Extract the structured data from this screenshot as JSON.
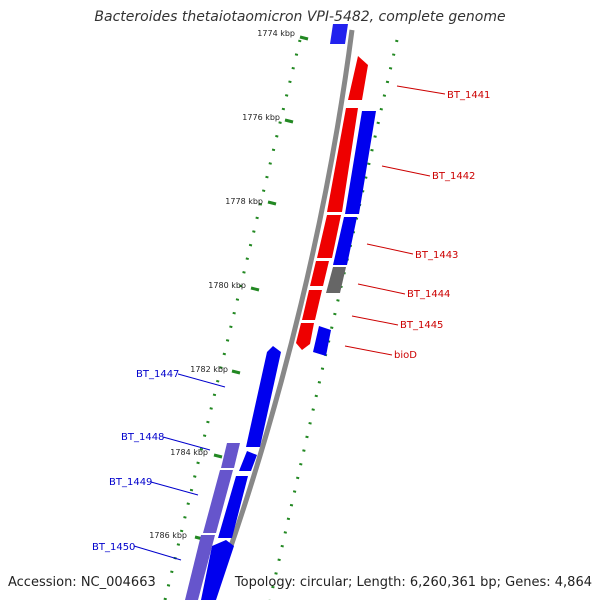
{
  "title": "Bacteroides thetaiotaomicron VPI-5482, complete genome",
  "footer": {
    "accession": "Accession: NC_004663",
    "summary": "Topology: circular; Length: 6,260,361 bp; Genes: 4,864"
  },
  "ticks": [
    {
      "label": "1774 kbp"
    },
    {
      "label": "1776 kbp"
    },
    {
      "label": "1778 kbp"
    },
    {
      "label": "1780 kbp"
    },
    {
      "label": "1782 kbp"
    },
    {
      "label": "1784 kbp"
    },
    {
      "label": "1786 kbp"
    }
  ],
  "gene_labels": [
    {
      "name": "BT_1441",
      "color": "#cc0000"
    },
    {
      "name": "BT_1442",
      "color": "#cc0000"
    },
    {
      "name": "BT_1443",
      "color": "#cc0000"
    },
    {
      "name": "BT_1444",
      "color": "#cc0000"
    },
    {
      "name": "BT_1445",
      "color": "#cc0000"
    },
    {
      "name": "bioD",
      "color": "#cc0000"
    },
    {
      "name": "BT_1447",
      "color": "#0000cc"
    },
    {
      "name": "BT_1448",
      "color": "#0000cc"
    },
    {
      "name": "BT_1449",
      "color": "#0000cc"
    },
    {
      "name": "BT_1450",
      "color": "#0000cc"
    }
  ],
  "colors": {
    "forward_red": "#ee0000",
    "reverse_blue": "#0000ee",
    "purple": "#6655cc",
    "gray": "#666666",
    "backbone": "#888888",
    "ticks": "#228822"
  }
}
